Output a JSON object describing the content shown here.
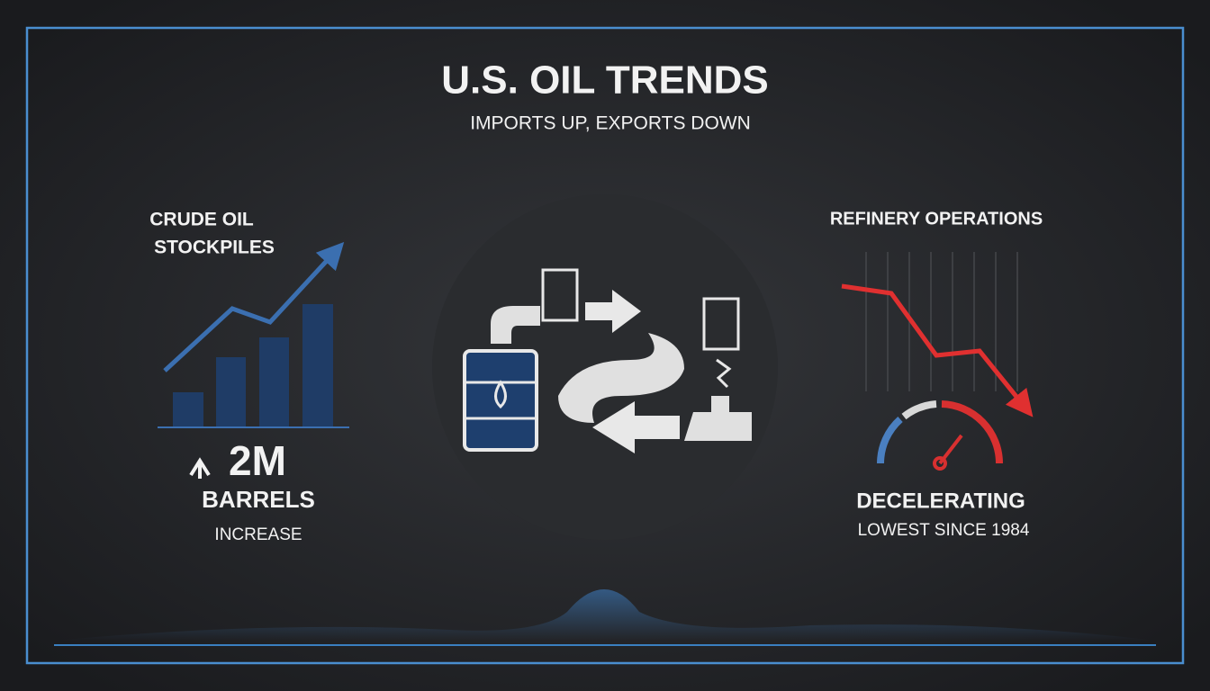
{
  "header": {
    "title": "U.S. OIL TRENDS",
    "subtitle": "IMPORTS UP, EXPORTS DOWN"
  },
  "left_panel": {
    "heading_lines": [
      "CRUDE OIL",
      "STOCKPILES"
    ],
    "figure": "2M",
    "unit": "BARRELS",
    "note": "INCREASE"
  },
  "right_panel": {
    "heading": "REFINERY OPERATIONS",
    "status": "DECELERATING",
    "note": "LOWEST SINCE 1984"
  }
}
